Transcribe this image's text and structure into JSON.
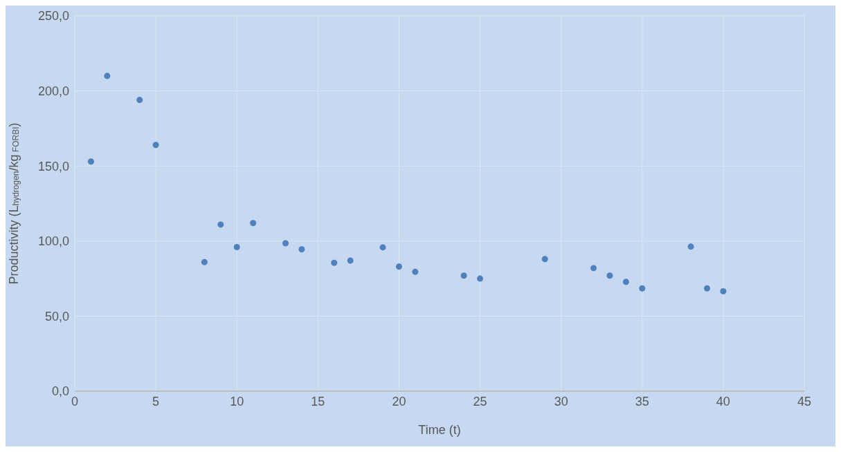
{
  "chart_data": {
    "type": "scatter",
    "xlabel": "Time (t)",
    "ylabel": "Productivity (L$_{hydrogen}$/kg$_{ FORBI}$)",
    "x": [
      1,
      2,
      4,
      5,
      8,
      9,
      10,
      11,
      13,
      14,
      16,
      17,
      19,
      20,
      21,
      24,
      25,
      29,
      32,
      33,
      34,
      35,
      38,
      39,
      40
    ],
    "series": [
      {
        "color": "#4f81bd",
        "values": [
          153,
          210,
          194,
          164,
          86,
          111,
          96,
          112,
          98.5,
          94.5,
          85.5,
          87,
          95.8,
          83,
          79.5,
          77,
          75,
          88,
          82,
          77,
          72.8,
          68.5,
          96.3,
          68.5,
          66.5
        ]
      }
    ],
    "xlim": [
      0,
      45
    ],
    "xticks": [
      0,
      5,
      10,
      15,
      20,
      25,
      30,
      35,
      40,
      45
    ],
    "ylim": [
      0,
      250
    ],
    "yticks": [
      {
        "value": 0,
        "label": "0,0"
      },
      {
        "value": 50,
        "label": "50,0"
      },
      {
        "value": 100,
        "label": "100,0"
      },
      {
        "value": 150,
        "label": "150,0"
      },
      {
        "value": 200,
        "label": "200,0"
      },
      {
        "value": 250,
        "label": "250,0"
      }
    ],
    "grid": true,
    "marker": "circle",
    "legend": false
  }
}
